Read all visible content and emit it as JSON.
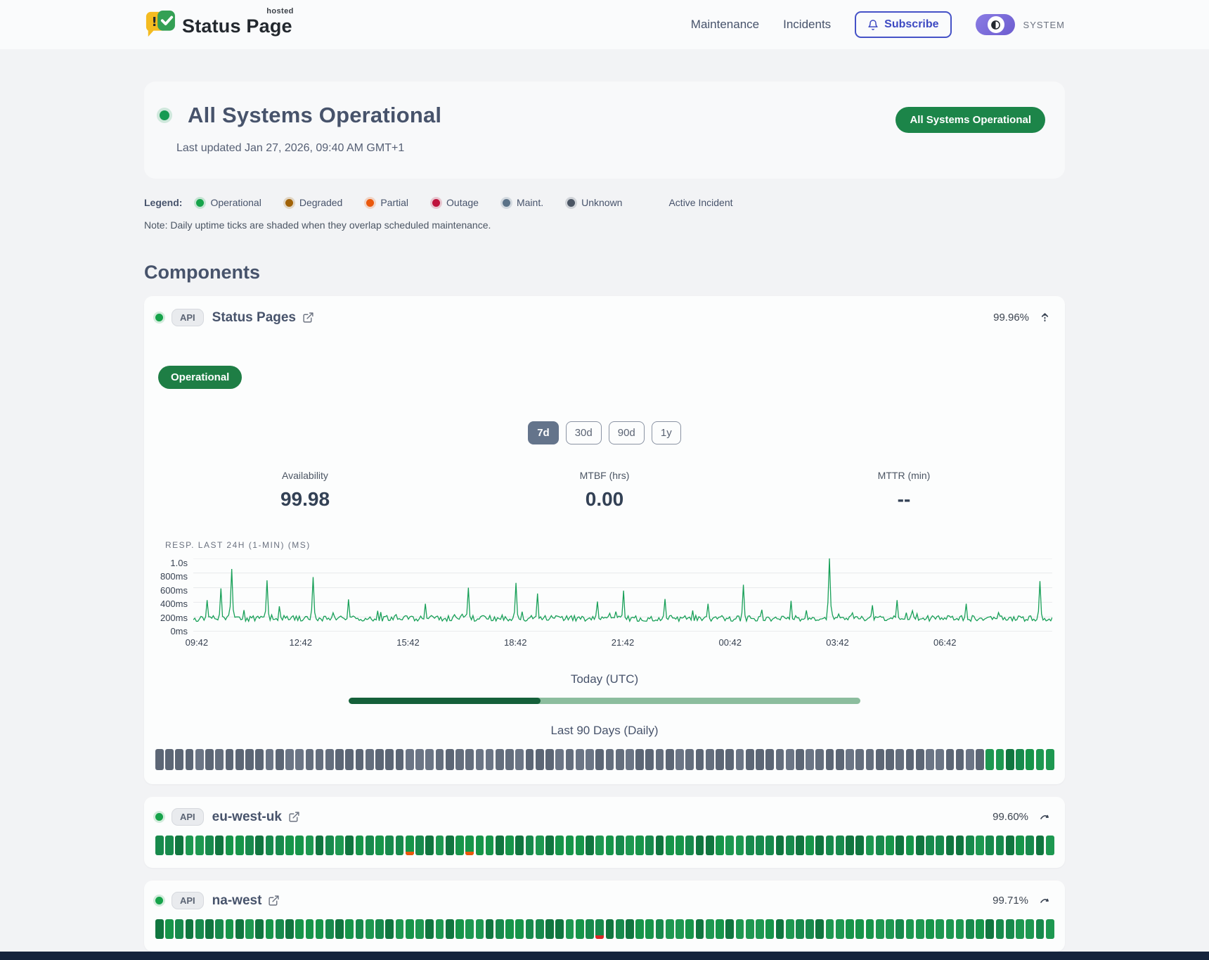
{
  "brand": {
    "name": "Status Page",
    "superscript": "hosted"
  },
  "nav": {
    "maintenance": "Maintenance",
    "incidents": "Incidents",
    "subscribe": "Subscribe",
    "theme_label": "SYSTEM"
  },
  "hero": {
    "title": "All Systems Operational",
    "updated": "Last updated Jan 27, 2026, 09:40 AM GMT+1",
    "badge": "All Systems Operational",
    "status_color": "#169a52"
  },
  "legend": {
    "label": "Legend:",
    "items": [
      {
        "label": "Operational",
        "color": "#16a34a"
      },
      {
        "label": "Degraded",
        "color": "#a16207"
      },
      {
        "label": "Partial",
        "color": "#ea580c"
      },
      {
        "label": "Outage",
        "color": "#be123c"
      },
      {
        "label": "Maint.",
        "color": "#5b7288"
      },
      {
        "label": "Unknown",
        "color": "#4b5563"
      }
    ],
    "active_incident": "Active Incident",
    "note": "Note: Daily uptime ticks are shaded when they overlap scheduled maintenance."
  },
  "components_title": "Components",
  "components": [
    {
      "tag": "API",
      "name": "Status Pages",
      "uptime": "99.96%",
      "status_badge": "Operational"
    },
    {
      "tag": "API",
      "name": "eu-west-uk",
      "uptime": "99.60%"
    },
    {
      "tag": "API",
      "name": "na-west",
      "uptime": "99.71%"
    }
  ],
  "detail": {
    "ranges": [
      "7d",
      "30d",
      "90d",
      "1y"
    ],
    "selected_range": "7d",
    "stats": [
      {
        "label": "Availability",
        "value": "99.98"
      },
      {
        "label": "MTBF (hrs)",
        "value": "0.00"
      },
      {
        "label": "MTTR (min)",
        "value": "--"
      }
    ],
    "today_label": "Today (UTC)",
    "today_progress": 0.375,
    "history_label": "Last 90 Days (Daily)"
  },
  "chart_data": {
    "type": "line",
    "title": "RESP. LAST 24H (1-MIN) (MS)",
    "ylabel_ticks_top_to_bottom": [
      "1.0s",
      "800ms",
      "600ms",
      "400ms",
      "200ms",
      "0ms"
    ],
    "x_ticks": [
      "09:42",
      "12:42",
      "15:42",
      "18:42",
      "21:42",
      "00:42",
      "03:42",
      "06:42"
    ],
    "ylim": [
      0,
      1000
    ],
    "baseline_ms": [
      140,
      220
    ],
    "line_color": "#18a058",
    "grid": true,
    "spikes": [
      {
        "t": 0.016,
        "ms": 430
      },
      {
        "t": 0.032,
        "ms": 590
      },
      {
        "t": 0.045,
        "ms": 855
      },
      {
        "t": 0.085,
        "ms": 700
      },
      {
        "t": 0.1,
        "ms": 345
      },
      {
        "t": 0.14,
        "ms": 745
      },
      {
        "t": 0.18,
        "ms": 440
      },
      {
        "t": 0.27,
        "ms": 380
      },
      {
        "t": 0.32,
        "ms": 600
      },
      {
        "t": 0.375,
        "ms": 665
      },
      {
        "t": 0.4,
        "ms": 520
      },
      {
        "t": 0.47,
        "ms": 410
      },
      {
        "t": 0.5,
        "ms": 560
      },
      {
        "t": 0.55,
        "ms": 445
      },
      {
        "t": 0.6,
        "ms": 380
      },
      {
        "t": 0.64,
        "ms": 640
      },
      {
        "t": 0.695,
        "ms": 420
      },
      {
        "t": 0.74,
        "ms": 1000
      },
      {
        "t": 0.79,
        "ms": 360
      },
      {
        "t": 0.82,
        "ms": 430
      },
      {
        "t": 0.9,
        "ms": 380
      },
      {
        "t": 0.985,
        "ms": 690
      }
    ]
  },
  "ticks": {
    "status_pages": {
      "count": 90,
      "gray_until": 83,
      "seed": 11
    },
    "eu_west_uk": {
      "count": 90,
      "gray_until": 0,
      "seed": 23,
      "partial_indices": [
        25,
        31
      ],
      "outage_indices": []
    },
    "na_west": {
      "count": 90,
      "gray_until": 0,
      "seed": 37,
      "partial_indices": [],
      "outage_indices": [
        44
      ]
    }
  },
  "colors": {
    "green_palette": [
      "#178a4c",
      "#1d9850",
      "#10763f",
      "#169549"
    ],
    "gray_palette": [
      "#646e7d",
      "#5c6675",
      "#6b7585"
    ],
    "partial_mark": "#ea580c",
    "outage_mark": "#dc2626",
    "today_fill": "#15603a",
    "today_rest": "#8cbd9e"
  }
}
